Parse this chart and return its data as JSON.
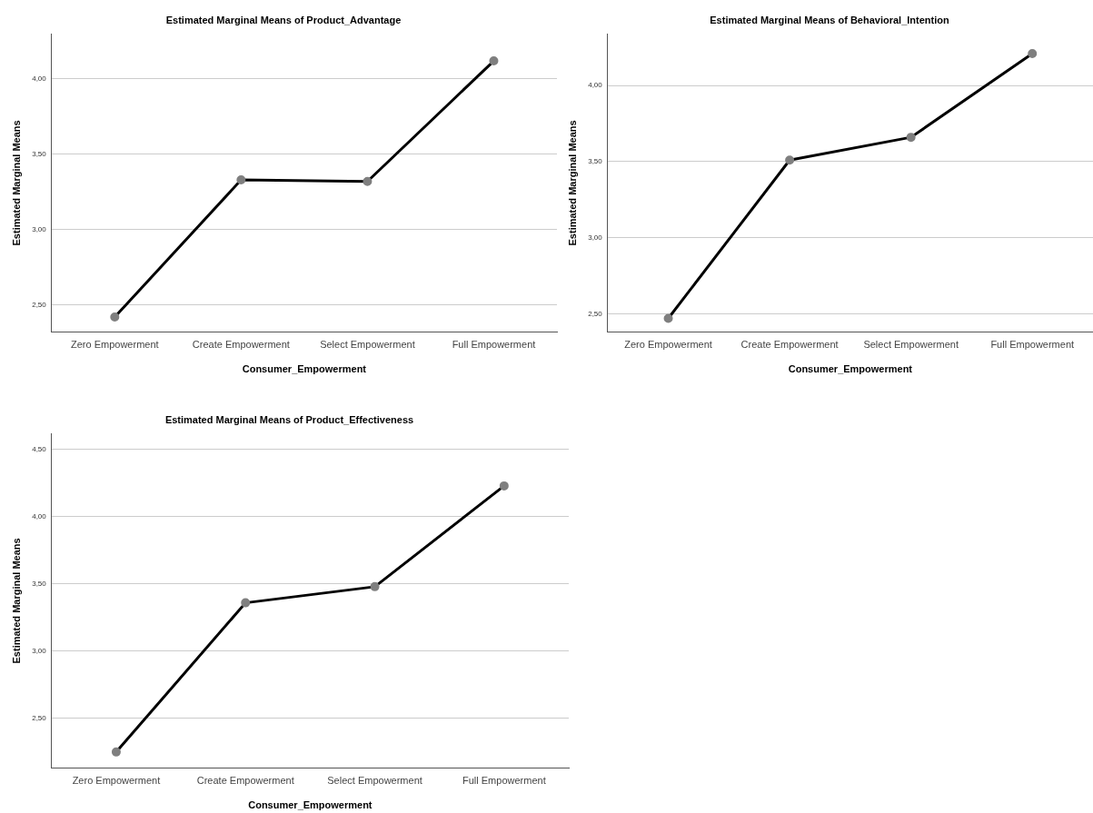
{
  "chart_data": [
    {
      "type": "line",
      "title": "Estimated Marginal Means of Product_Advantage",
      "xlabel": "Consumer_Empowerment",
      "ylabel": "Estimated Marginal Means",
      "categories": [
        "Zero Empowerment",
        "Create Empowerment",
        "Select Empowerment",
        "Full Empowerment"
      ],
      "series": [
        {
          "color": "#000000",
          "values": [
            2.42,
            3.33,
            3.32,
            4.12
          ]
        }
      ],
      "ylim": [
        2.32,
        4.3
      ],
      "yticks": [
        {
          "value": 2.5,
          "label": "2,50"
        },
        {
          "value": 3,
          "label": "3,00"
        },
        {
          "value": 3.5,
          "label": "3,50"
        },
        {
          "value": 4,
          "label": "4,00"
        }
      ],
      "grid": "y",
      "legend": false,
      "marker": "circle",
      "line_style": "solid"
    },
    {
      "type": "line",
      "title": "Estimated Marginal Means of Behavioral_Intention",
      "xlabel": "Consumer_Empowerment",
      "ylabel": "Estimated Marginal Means",
      "categories": [
        "Zero Empowerment",
        "Create Empowerment",
        "Select Empowerment",
        "Full Empowerment"
      ],
      "series": [
        {
          "color": "#000000",
          "values": [
            2.47,
            3.51,
            3.66,
            4.21
          ]
        }
      ],
      "ylim": [
        2.38,
        4.34
      ],
      "yticks": [
        {
          "value": 2.5,
          "label": "2,50"
        },
        {
          "value": 3,
          "label": "3,00"
        },
        {
          "value": 3.5,
          "label": "3,50"
        },
        {
          "value": 4,
          "label": "4,00"
        }
      ],
      "grid": "y",
      "legend": false,
      "marker": "circle",
      "line_style": "solid"
    },
    {
      "type": "line",
      "title": "Estimated Marginal Means of Product_Effectiveness",
      "xlabel": "Consumer_Empowerment",
      "ylabel": "Estimated Marginal Means",
      "categories": [
        "Zero Empowerment",
        "Create Empowerment",
        "Select Empowerment",
        "Full Empowerment"
      ],
      "series": [
        {
          "color": "#000000",
          "values": [
            2.25,
            3.36,
            3.48,
            4.23
          ]
        }
      ],
      "ylim": [
        2.13,
        4.62
      ],
      "yticks": [
        {
          "value": 2.5,
          "label": "2,50"
        },
        {
          "value": 3,
          "label": "3,00"
        },
        {
          "value": 3.5,
          "label": "3,50"
        },
        {
          "value": 4,
          "label": "4,00"
        },
        {
          "value": 4.5,
          "label": "4,50"
        }
      ],
      "grid": "y",
      "legend": false,
      "marker": "circle",
      "line_style": "solid"
    }
  ]
}
